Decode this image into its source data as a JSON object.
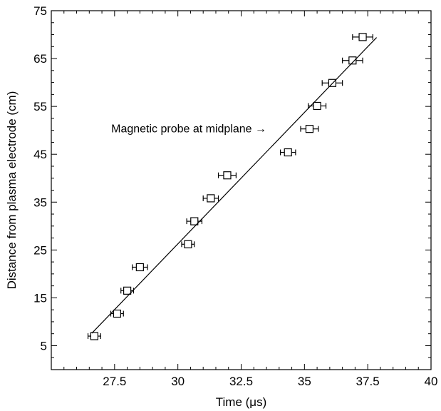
{
  "chart_data": {
    "type": "scatter",
    "title": "",
    "xlabel": "Time (μs)",
    "ylabel": "Distance from plasma electrode (cm)",
    "xlim": [
      25,
      40
    ],
    "ylim": [
      0,
      75
    ],
    "xticks": [
      27.5,
      30,
      32.5,
      35,
      37.5,
      40
    ],
    "xtick_labels": [
      "27.5",
      "30",
      "32.5",
      "35",
      "37.5",
      "40"
    ],
    "yticks": [
      5,
      15,
      25,
      35,
      45,
      55,
      65,
      75
    ],
    "ytick_labels": [
      "5",
      "15",
      "25",
      "35",
      "45",
      "55",
      "65",
      "75"
    ],
    "grid": false,
    "series": [
      {
        "marker": "open-square",
        "points": [
          {
            "x": 26.7,
            "y": 7.0,
            "xerr": 0.25
          },
          {
            "x": 27.6,
            "y": 11.7,
            "xerr": 0.25
          },
          {
            "x": 28.0,
            "y": 16.5,
            "xerr": 0.25
          },
          {
            "x": 28.5,
            "y": 21.4,
            "xerr": 0.3
          },
          {
            "x": 30.4,
            "y": 26.2,
            "xerr": 0.25
          },
          {
            "x": 30.65,
            "y": 31.0,
            "xerr": 0.3
          },
          {
            "x": 31.3,
            "y": 35.8,
            "xerr": 0.3
          },
          {
            "x": 31.95,
            "y": 40.6,
            "xerr": 0.35
          },
          {
            "x": 34.35,
            "y": 45.4,
            "xerr": 0.3
          },
          {
            "x": 35.2,
            "y": 50.3,
            "xerr": 0.35
          },
          {
            "x": 35.5,
            "y": 55.1,
            "xerr": 0.35
          },
          {
            "x": 36.1,
            "y": 59.9,
            "xerr": 0.4
          },
          {
            "x": 36.9,
            "y": 64.6,
            "xerr": 0.4
          },
          {
            "x": 37.3,
            "y": 69.5,
            "xerr": 0.4
          }
        ]
      }
    ],
    "fit_line": {
      "x": [
        26.6,
        37.85
      ],
      "y": [
        7.6,
        69.4
      ]
    },
    "annotations": [
      {
        "text": "Magnetic probe at midplane →",
        "x": 33.5,
        "y": 50.5
      }
    ]
  }
}
